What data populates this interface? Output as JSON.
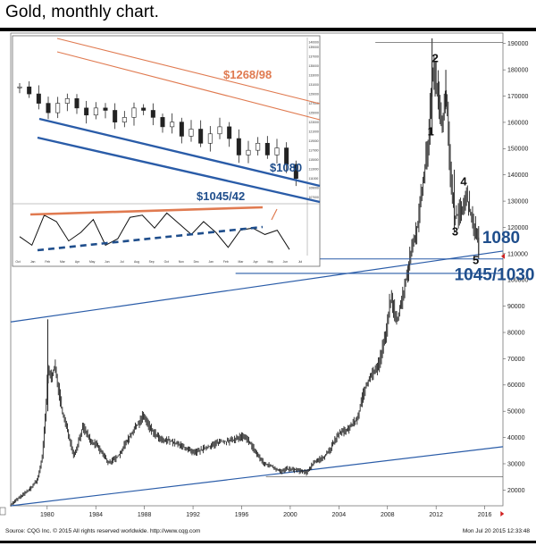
{
  "title": "Gold, monthly chart.",
  "source": "Source: CQG Inc. © 2015 All rights reserved worldwide. http://www.cqg.com",
  "timestamp": "Mon Jul 20 2015 12:33:48",
  "colors": {
    "bars": "#222222",
    "trendline": "#2a5ca8",
    "resistance": "#e07a50",
    "annotation": "#1f4e8c"
  },
  "chart_data": {
    "type": "bar",
    "subtype": "ohlc-monthly",
    "x_ticks": [
      "1980",
      "1984",
      "1988",
      "1992",
      "1996",
      "2000",
      "2004",
      "2008",
      "2012",
      "2016"
    ],
    "y_ticks": [
      "190000",
      "180000",
      "170000",
      "160000",
      "150000",
      "140000",
      "130000",
      "120000",
      "110000",
      "100000",
      "90000",
      "80000",
      "70000",
      "60000",
      "50000",
      "40000",
      "30000",
      "20000"
    ],
    "ylim": [
      14000,
      194000
    ],
    "xlim": [
      1977.0,
      2017.5
    ],
    "series": [
      {
        "x": [
          1977.0,
          1977.8,
          1978.6,
          1979.2,
          1979.6,
          1979.9,
          1980.05,
          1980.3,
          1980.6,
          1980.9,
          1981.3,
          1981.7,
          1982.2,
          1982.5,
          1982.9,
          1983.2,
          1983.6,
          1984.0,
          1984.5,
          1985.0,
          1985.5,
          1986.0,
          1986.5,
          1987.0,
          1987.5,
          1987.9,
          1988.4,
          1988.9,
          1989.5,
          1990.0,
          1990.6,
          1991.2,
          1992.0,
          1992.8,
          1993.5,
          1994.2,
          1995.0,
          1996.0,
          1996.6,
          1997.2,
          1997.8,
          1998.5,
          1999.2,
          1999.8,
          2000.6,
          2001.3,
          2002.0,
          2002.6,
          2003.2,
          2004.0,
          2004.8,
          2005.5,
          2006.0,
          2006.5,
          2007.2,
          2007.9,
          2008.2,
          2008.8,
          2009.3,
          2009.9,
          2010.5,
          2011.0,
          2011.4,
          2011.67,
          2012.0,
          2012.5,
          2012.8,
          2013.2,
          2013.5,
          2014.0,
          2014.5,
          2015.0,
          2015.5
        ],
        "values": [
          14500,
          17500,
          20500,
          24000,
          33000,
          52000,
          66000,
          63000,
          67000,
          59000,
          48000,
          42000,
          33000,
          37500,
          44000,
          42000,
          38000,
          37500,
          34000,
          30500,
          31500,
          34000,
          38500,
          42000,
          45500,
          48500,
          44000,
          41000,
          38500,
          39000,
          37500,
          36500,
          34000,
          35500,
          37000,
          38500,
          38500,
          40500,
          38500,
          34000,
          30000,
          29000,
          27000,
          28000,
          27500,
          26500,
          31000,
          32000,
          35000,
          41500,
          43500,
          47000,
          56500,
          63000,
          67000,
          80000,
          93000,
          85000,
          95000,
          110000,
          122000,
          140000,
          155000,
          180000,
          175000,
          160000,
          173000,
          137000,
          124000,
          126000,
          131000,
          123000,
          113000
        ],
        "ohlc": [
          [
            1980.05,
            67500,
            85000,
            50000,
            66000
          ],
          [
            2011.67,
            170000,
            192000,
            155000,
            180000
          ],
          [
            2012.8,
            173000,
            180000,
            165000,
            173000
          ],
          [
            2013.5,
            128000,
            142000,
            118000,
            124000
          ],
          [
            2015.5,
            118000,
            120500,
            108000,
            113000
          ]
        ]
      }
    ],
    "inset": {
      "type": "bar",
      "title": "",
      "y_ticks": [
        "140000",
        "139000",
        "137000",
        "135000",
        "133000",
        "131000",
        "129000",
        "127000",
        "125000",
        "123000",
        "121000",
        "119000",
        "117000",
        "115000",
        "113000",
        "111000",
        "109000",
        "107000"
      ],
      "x_ticks": [
        "Oct",
        "Jan",
        "Feb",
        "Mar",
        "Apr",
        "May",
        "Jun",
        "Jul",
        "Aug",
        "Sep",
        "Oct",
        "Nov",
        "Dec",
        "Jan",
        "Feb",
        "Mar",
        "Apr",
        "May",
        "Jun",
        "Jul"
      ],
      "values": [
        130500,
        129000,
        127000,
        125000,
        127000,
        128000,
        126000,
        124500,
        126000,
        125500,
        123000,
        124000,
        126000,
        125500,
        124000,
        122000,
        123000,
        120000,
        121500,
        118500,
        120500,
        122000,
        119500,
        116000,
        117000,
        118500,
        116000,
        117500,
        114000,
        111000
      ],
      "ylim": [
        106000,
        141000
      ],
      "annotations": [
        "$1268/98",
        "$1080",
        "$1045/42"
      ]
    },
    "annotations": [
      {
        "label": "1",
        "x": 2011.3,
        "y": 155000
      },
      {
        "label": "2",
        "x": 2011.67,
        "y": 183000
      },
      {
        "label": "3",
        "x": 2013.3,
        "y": 117000
      },
      {
        "label": "4",
        "x": 2014.0,
        "y": 136000
      },
      {
        "label": "5",
        "x": 2015.0,
        "y": 106000
      },
      {
        "label": "1080",
        "x": 2015.8,
        "y": 114000
      },
      {
        "label": "1045/1030",
        "x": 2013.5,
        "y": 100000
      }
    ],
    "hlines": [
      108000,
      102500,
      25000,
      190500
    ],
    "trendlines": [
      {
        "from": [
          1977.0,
          84000
        ],
        "to": [
          2017.5,
          111000
        ]
      },
      {
        "from": [
          1977.0,
          14000
        ],
        "to": [
          2017.5,
          36500
        ]
      }
    ]
  }
}
